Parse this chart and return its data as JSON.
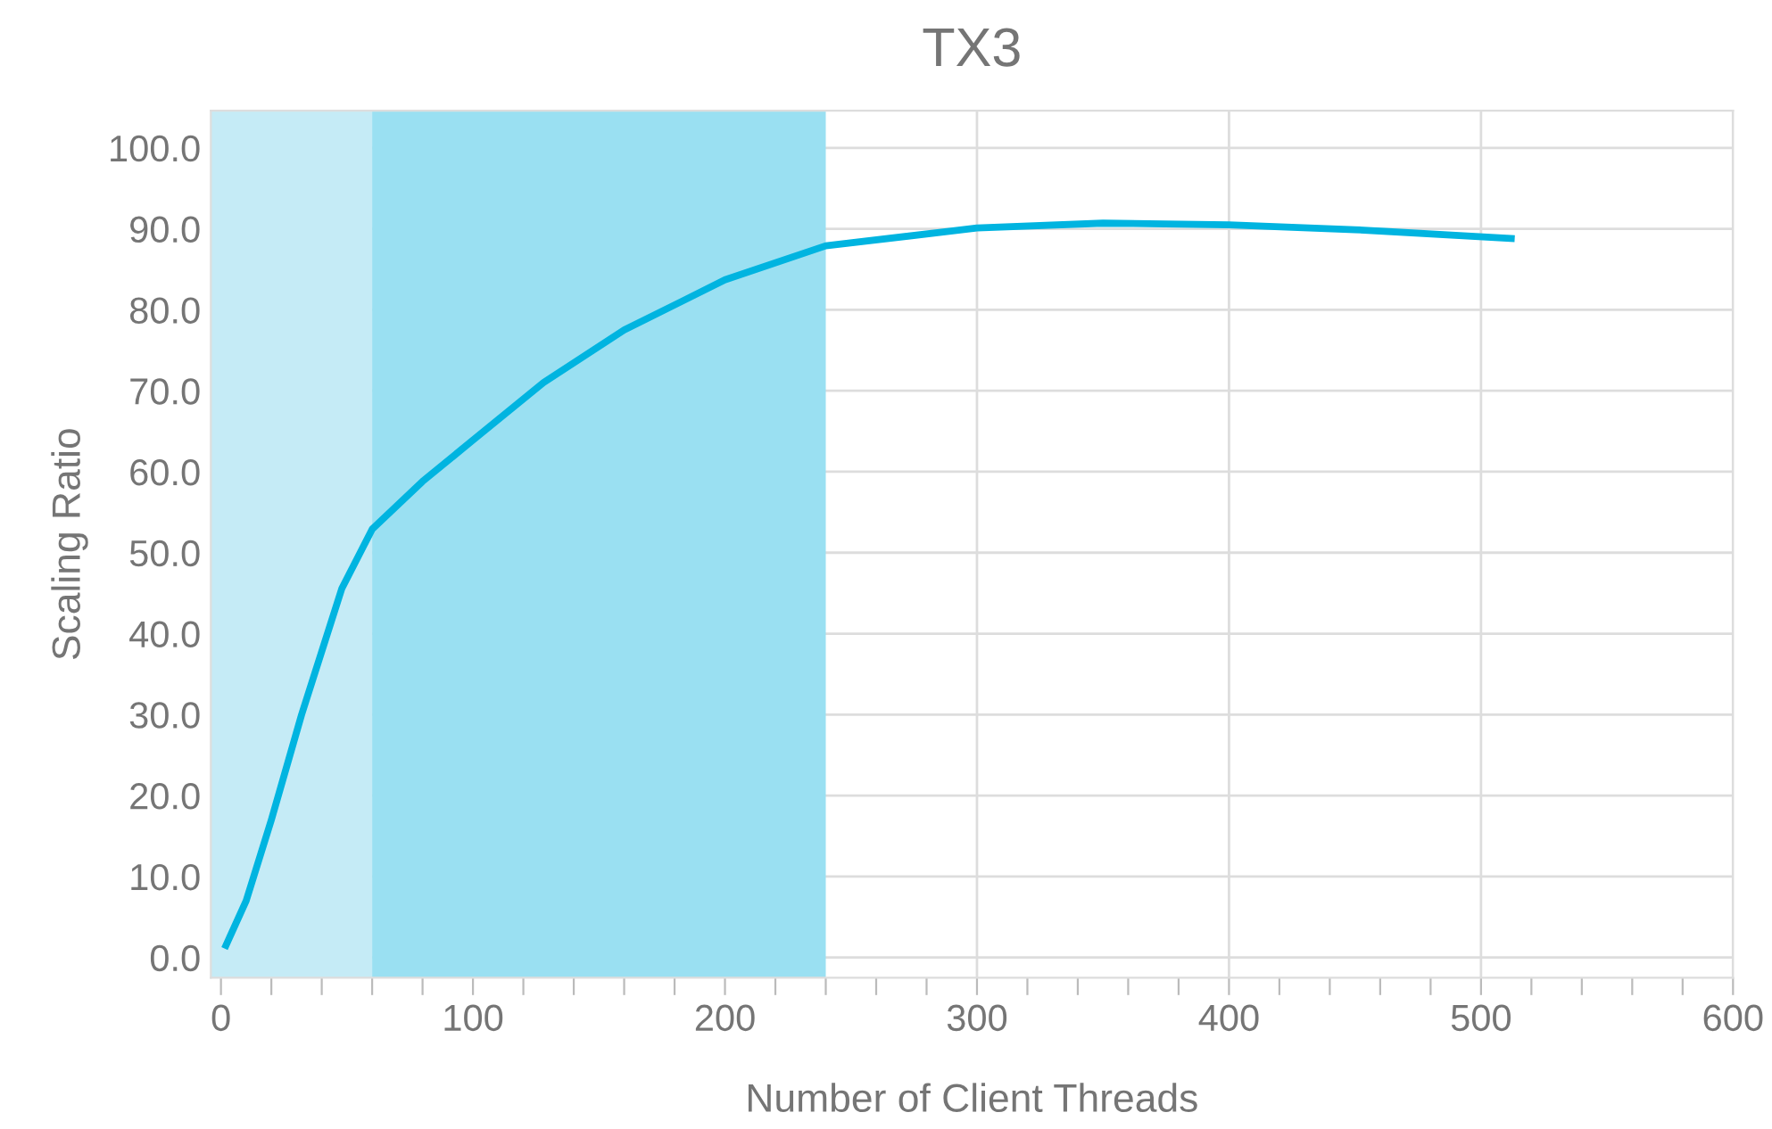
{
  "chart_data": {
    "type": "line",
    "title": "TX3",
    "xlabel": "Number of Client Threads",
    "ylabel": "Scaling Ratio",
    "x": [
      2,
      10,
      20,
      32,
      48,
      60,
      80,
      100,
      128,
      160,
      200,
      240,
      300,
      350,
      400,
      450,
      512
    ],
    "series": [
      {
        "color": "#00b4e0",
        "values": [
          1.5,
          7,
          17,
          30,
          45.6,
          52.9,
          58.8,
          63.9,
          71,
          77.5,
          83.7,
          87.9,
          90.1,
          90.7,
          90.5,
          89.9,
          88.8
        ]
      }
    ],
    "xlim": [
      -4,
      600
    ],
    "ylim": [
      -2.5,
      104.6
    ],
    "xticks": [
      0,
      {
        "value": 20,
        "label": null
      },
      {
        "value": 40,
        "label": null
      },
      {
        "value": 60,
        "label": null
      },
      {
        "value": 80,
        "label": null
      },
      100,
      {
        "value": 120,
        "label": null
      },
      {
        "value": 140,
        "label": null
      },
      {
        "value": 160,
        "label": null
      },
      {
        "value": 180,
        "label": null
      },
      200,
      {
        "value": 220,
        "label": null
      },
      {
        "value": 240,
        "label": null
      },
      {
        "value": 260,
        "label": null
      },
      {
        "value": 280,
        "label": null
      },
      300,
      {
        "value": 320,
        "label": null
      },
      {
        "value": 340,
        "label": null
      },
      {
        "value": 360,
        "label": null
      },
      {
        "value": 380,
        "label": null
      },
      400,
      {
        "value": 420,
        "label": null
      },
      {
        "value": 440,
        "label": null
      },
      {
        "value": 460,
        "label": null
      },
      {
        "value": 480,
        "label": null
      },
      500,
      {
        "value": 520,
        "label": null
      },
      {
        "value": 540,
        "label": null
      },
      {
        "value": 560,
        "label": null
      },
      {
        "value": 580,
        "label": null
      },
      600
    ],
    "yticks": [
      {
        "value": 0,
        "label": "0.0"
      },
      {
        "value": 10,
        "label": "10.0"
      },
      {
        "value": 20,
        "label": "20.0"
      },
      {
        "value": 30,
        "label": "30.0"
      },
      {
        "value": 40,
        "label": "40.0"
      },
      {
        "value": 50,
        "label": "50.0"
      },
      {
        "value": 60,
        "label": "60.0"
      },
      {
        "value": 70,
        "label": "70.0"
      },
      {
        "value": 80,
        "label": "80.0"
      },
      {
        "value": 90,
        "label": "90.0"
      },
      {
        "value": 100,
        "label": "100.0"
      }
    ],
    "bands": [
      {
        "axis": "x",
        "from": -4,
        "to": 60,
        "color": "#c5ebf6"
      },
      {
        "axis": "x",
        "from": 60,
        "to": 240,
        "color": "#9ae0f2"
      }
    ],
    "grid": true,
    "marker": "none",
    "line_style": "solid",
    "legend": false
  }
}
